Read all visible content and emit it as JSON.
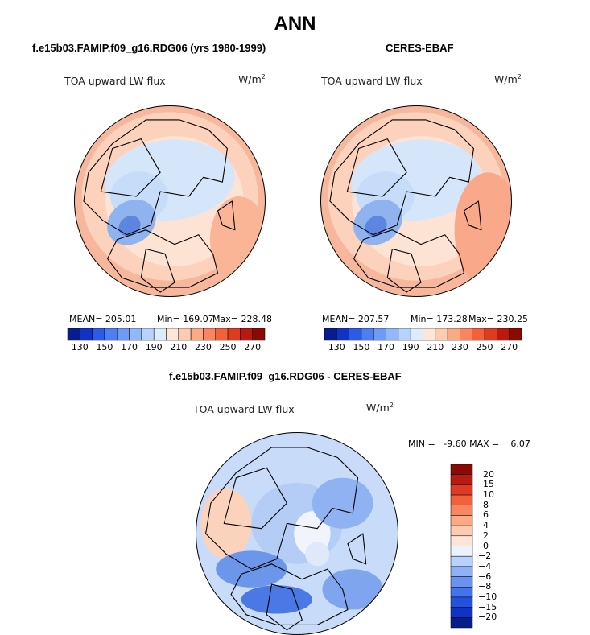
{
  "chart_data": {
    "title": "ANN",
    "panels": [
      {
        "type": "heatmap",
        "projection": "north-polar-stereographic",
        "title": "f.e15b03.FAMIP.f09_g16.RDG06 (yrs 1980-1999)",
        "variable": "TOA upward LW flux",
        "units_base": "W/m",
        "units_exp": "2",
        "mean_text": "MEAN= 205.01",
        "min_text": "Min= 169.07",
        "max_text": "Max= 228.48",
        "colorbar_ticks": [
          "130",
          "150",
          "170",
          "190",
          "210",
          "230",
          "250",
          "270"
        ],
        "colorbar_colors": [
          "#081d8c",
          "#1133c4",
          "#2e5ae6",
          "#4d7ef2",
          "#6f9bf6",
          "#93b8f8",
          "#b8d3fb",
          "#dcecfd",
          "#fde6d8",
          "#fccbb0",
          "#fbaa85",
          "#f98660",
          "#f2603c",
          "#dd3c22",
          "#b81a10",
          "#8c0a04"
        ]
      },
      {
        "type": "heatmap",
        "projection": "north-polar-stereographic",
        "title": "CERES-EBAF",
        "variable": "TOA upward LW flux",
        "units_base": "W/m",
        "units_exp": "2",
        "mean_text": "MEAN= 207.57",
        "min_text": "Min= 173.28",
        "max_text": "Max= 230.25",
        "colorbar_ticks": [
          "130",
          "150",
          "170",
          "190",
          "210",
          "230",
          "250",
          "270"
        ],
        "colorbar_colors": [
          "#081d8c",
          "#1133c4",
          "#2e5ae6",
          "#4d7ef2",
          "#6f9bf6",
          "#93b8f8",
          "#b8d3fb",
          "#dcecfd",
          "#fde6d8",
          "#fccbb0",
          "#fbaa85",
          "#f98660",
          "#f2603c",
          "#dd3c22",
          "#b81a10",
          "#8c0a04"
        ]
      },
      {
        "type": "heatmap",
        "projection": "north-polar-stereographic",
        "title": "f.e15b03.FAMIP.f09_g16.RDG06 - CERES-EBAF",
        "variable": "TOA upward LW flux",
        "units_base": "W/m",
        "units_exp": "2",
        "minmax_text": "MIN =   -9.60 MAX =    6.07",
        "colorbar_ticks": [
          "20",
          "15",
          "10",
          "8",
          "6",
          "4",
          "2",
          "0",
          "−2",
          "−4",
          "−6",
          "−8",
          "−10",
          "−15",
          "−20"
        ],
        "colorbar_colors": [
          "#8c0a04",
          "#b81a10",
          "#dd3c22",
          "#f2603c",
          "#f98660",
          "#fbaa85",
          "#fccbb0",
          "#fde6d8",
          "#eaf2fd",
          "#b8d3fb",
          "#8fb2f6",
          "#6a93f0",
          "#4672ea",
          "#2452e0",
          "#0f33c4",
          "#081d8c"
        ]
      }
    ]
  }
}
